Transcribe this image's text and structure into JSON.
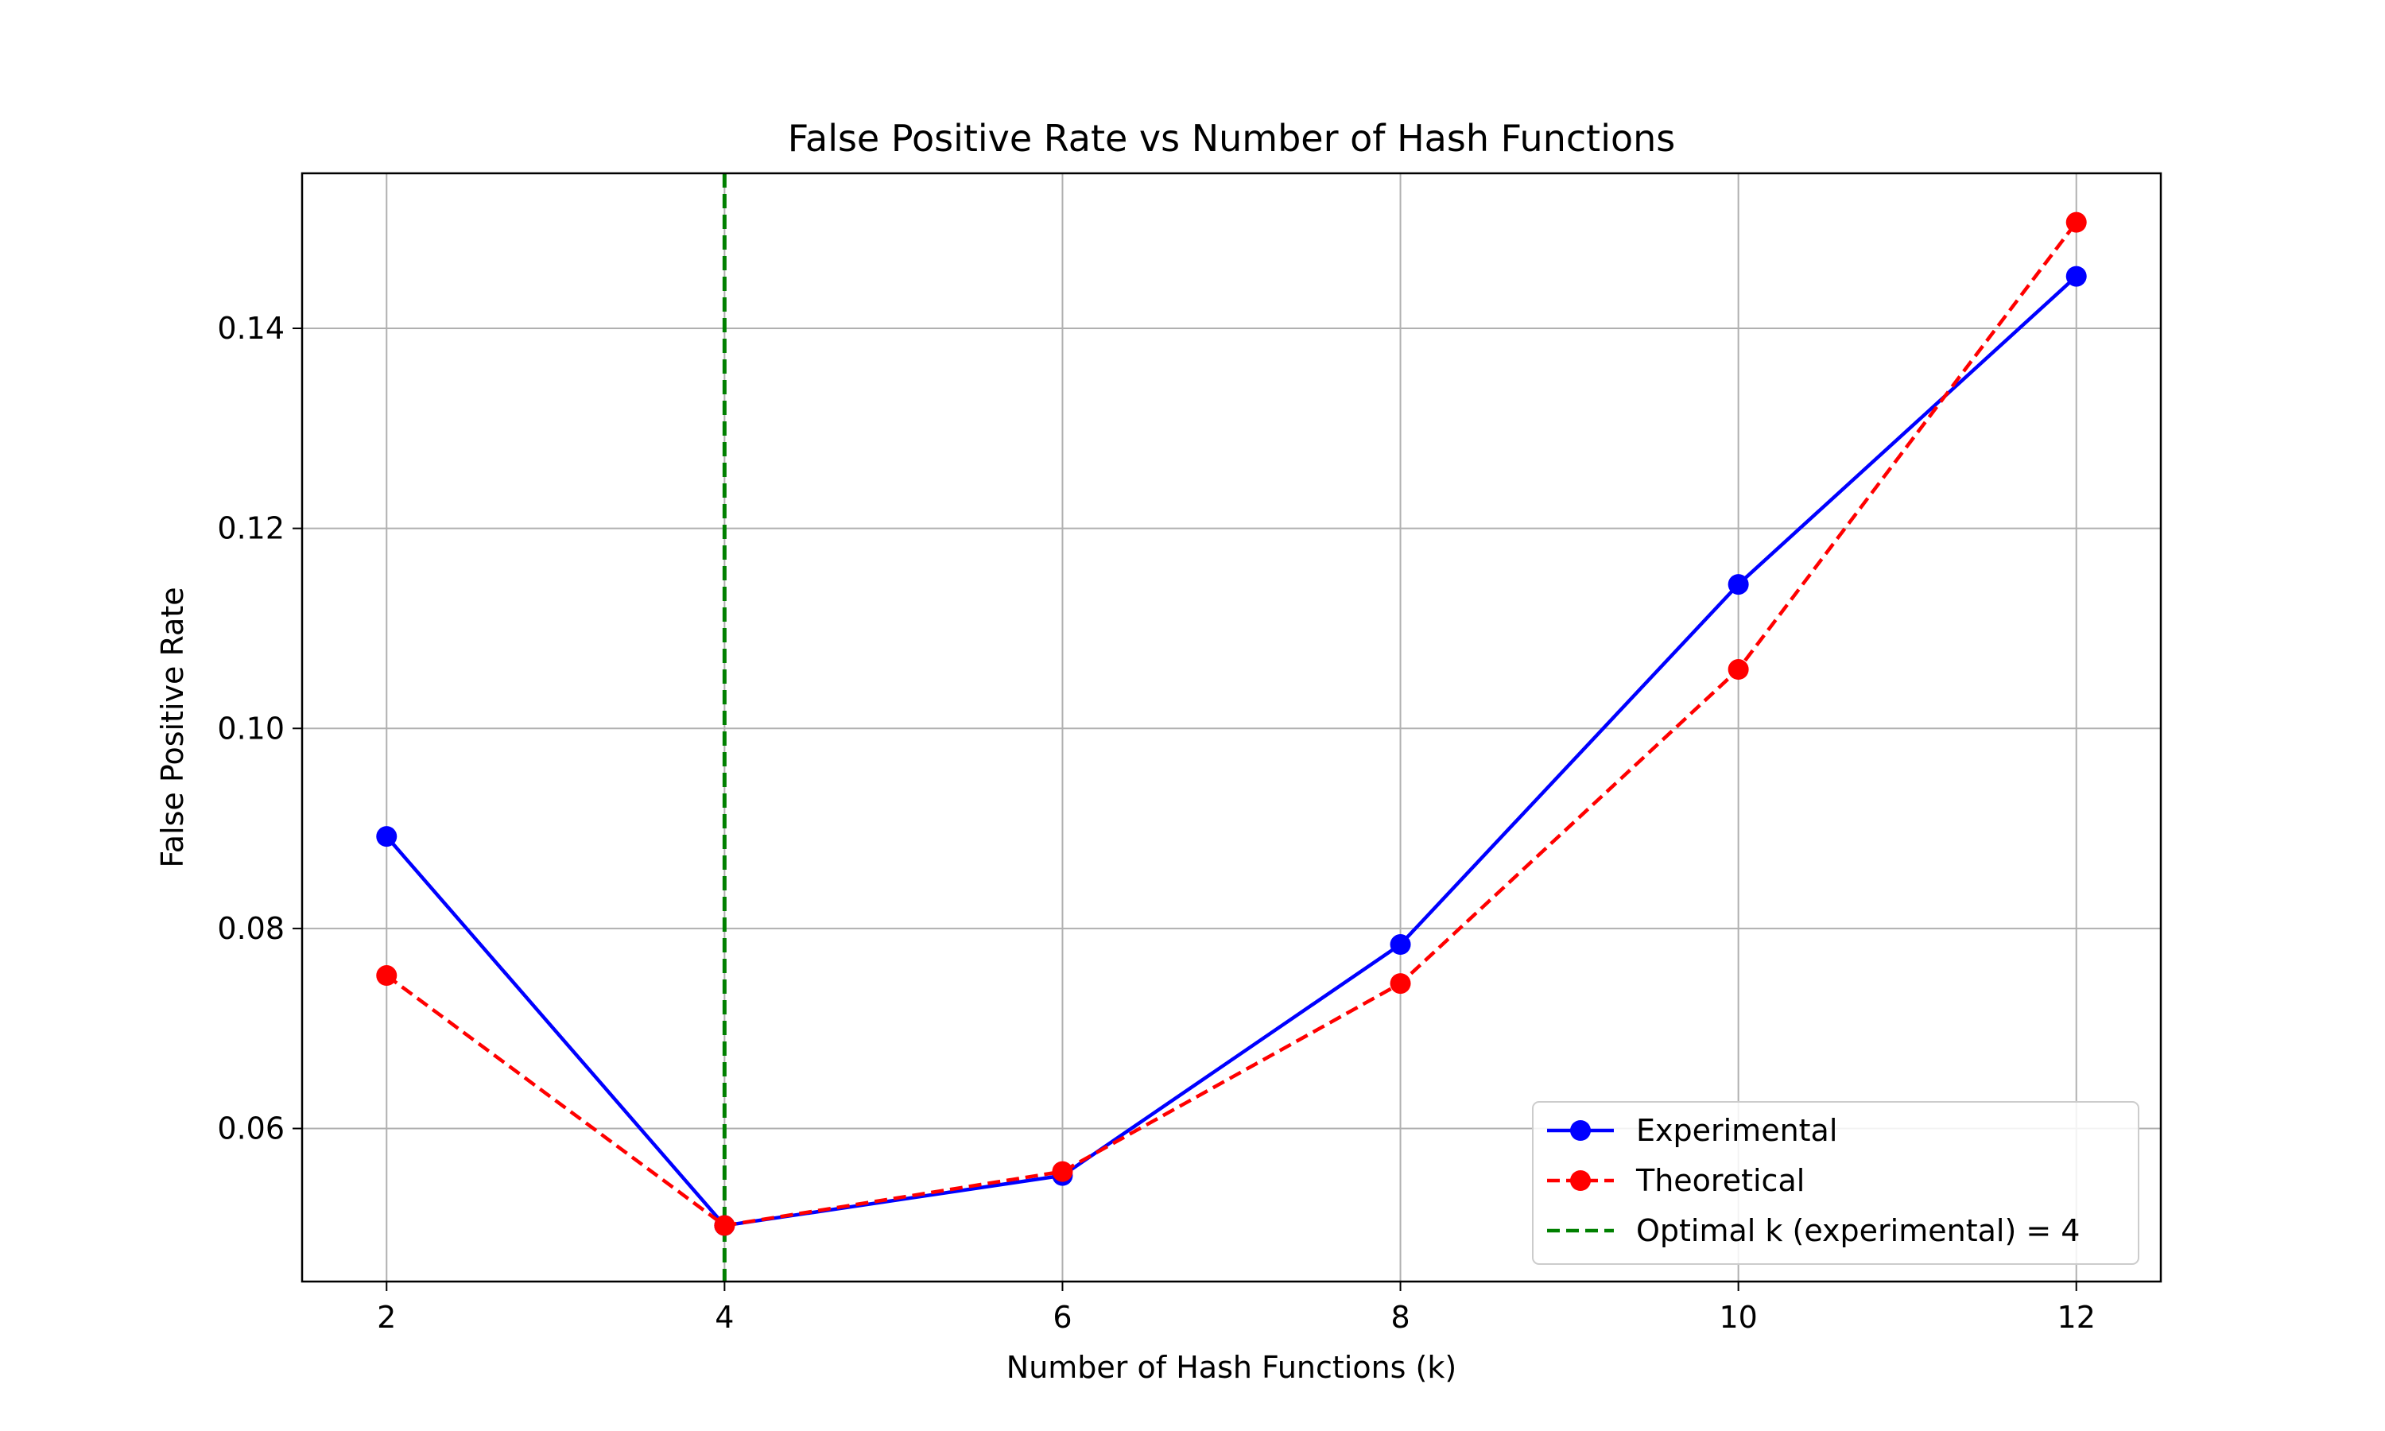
{
  "chart_data": {
    "type": "line",
    "title": "False Positive Rate vs Number of Hash Functions",
    "xlabel": "Number of Hash Functions (k)",
    "ylabel": "False Positive Rate",
    "x": [
      2,
      4,
      6,
      8,
      10,
      12
    ],
    "xlim": [
      1.5,
      12.5
    ],
    "ylim": [
      0.0447,
      0.1555
    ],
    "xticks": [
      "2",
      "4",
      "6",
      "8",
      "10",
      "12"
    ],
    "yticks": [
      "0.06",
      "0.08",
      "0.10",
      "0.12",
      "0.14"
    ],
    "grid": true,
    "legend_position": "lower-right",
    "series": [
      {
        "name": "Experimental",
        "values": [
          0.0892,
          0.0503,
          0.0553,
          0.0784,
          0.1144,
          0.1452
        ],
        "color": "#0000ff",
        "style": "solid",
        "marker": "circle"
      },
      {
        "name": "Theoretical",
        "values": [
          0.0753,
          0.0503,
          0.0557,
          0.0745,
          0.1059,
          0.1506
        ],
        "color": "#ff0000",
        "style": "dashed",
        "marker": "circle"
      }
    ],
    "vlines": [
      {
        "name": "Optimal k (experimental) = 4",
        "x": 4,
        "color": "#008000",
        "style": "dashed"
      }
    ]
  }
}
